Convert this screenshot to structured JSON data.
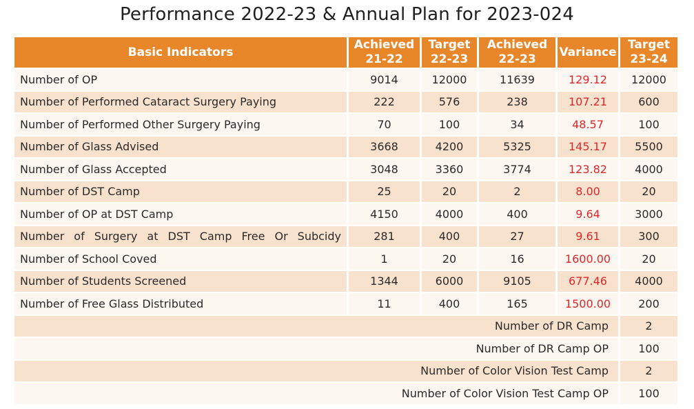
{
  "title": "Performance 2022-23 & Annual Plan for 2023-024",
  "headers": {
    "indicator": "Basic Indicators",
    "achieved_2122": [
      "Achieved",
      "21-22"
    ],
    "target_2223": [
      "Target",
      "22-23"
    ],
    "achieved_2223": [
      "Achieved",
      "22-23"
    ],
    "variance": "Variance",
    "target_2324": [
      "Target",
      "23-24"
    ]
  },
  "rows": [
    {
      "indicator": "Number of OP",
      "achieved_21_22": "9014",
      "target_22_23": "12000",
      "achieved_22_23": "11639",
      "variance": "129.12",
      "target_23_24": "12000"
    },
    {
      "indicator": "Number of Performed Cataract Surgery Paying",
      "achieved_21_22": "222",
      "target_22_23": "576",
      "achieved_22_23": "238",
      "variance": "107.21",
      "target_23_24": "600"
    },
    {
      "indicator": "Number of Performed Other Surgery Paying",
      "achieved_21_22": "70",
      "target_22_23": "100",
      "achieved_22_23": "34",
      "variance": "48.57",
      "target_23_24": "100"
    },
    {
      "indicator": "Number of Glass Advised",
      "achieved_21_22": "3668",
      "target_22_23": "4200",
      "achieved_22_23": "5325",
      "variance": "145.17",
      "target_23_24": "5500"
    },
    {
      "indicator": "Number of Glass Accepted",
      "achieved_21_22": "3048",
      "target_22_23": "3360",
      "achieved_22_23": "3774",
      "variance": "123.82",
      "target_23_24": "4000"
    },
    {
      "indicator": "Number of DST Camp",
      "achieved_21_22": "25",
      "target_22_23": "20",
      "achieved_22_23": "2",
      "variance": "8.00",
      "target_23_24": "20"
    },
    {
      "indicator": "Number of OP at DST Camp",
      "achieved_21_22": "4150",
      "target_22_23": "4000",
      "achieved_22_23": "400",
      "variance": "9.64",
      "target_23_24": "3000"
    },
    {
      "indicator": "Number of Surgery at DST Camp Free Or Subcidy",
      "achieved_21_22": "281",
      "target_22_23": "400",
      "achieved_22_23": "27",
      "variance": "9.61",
      "target_23_24": "300"
    },
    {
      "indicator": "Number of School Coved",
      "achieved_21_22": "1",
      "target_22_23": "20",
      "achieved_22_23": "16",
      "variance": "1600.00",
      "target_23_24": "20"
    },
    {
      "indicator": "Number of Students Screened",
      "achieved_21_22": "1344",
      "target_22_23": "6000",
      "achieved_22_23": "9105",
      "variance": "677.46",
      "target_23_24": "4000"
    },
    {
      "indicator": "Number of Free Glass Distributed",
      "achieved_21_22": "11",
      "target_22_23": "400",
      "achieved_22_23": "165",
      "variance": "1500.00",
      "target_23_24": "200"
    }
  ],
  "extra_rows": [
    {
      "indicator": "Number of DR Camp",
      "target_23_24": "2"
    },
    {
      "indicator": "Number of DR Camp OP",
      "target_23_24": "100"
    },
    {
      "indicator": "Number of Color Vision Test Camp",
      "target_23_24": "2"
    },
    {
      "indicator": "Number of Color Vision Test Camp OP",
      "target_23_24": "100"
    }
  ],
  "colors": {
    "header_bg": "#e8862a",
    "header_text": "#ffffff",
    "row_light": "#fdf7f2",
    "row_shaded": "#f9e2cd",
    "variance_text": "#e0262a"
  }
}
